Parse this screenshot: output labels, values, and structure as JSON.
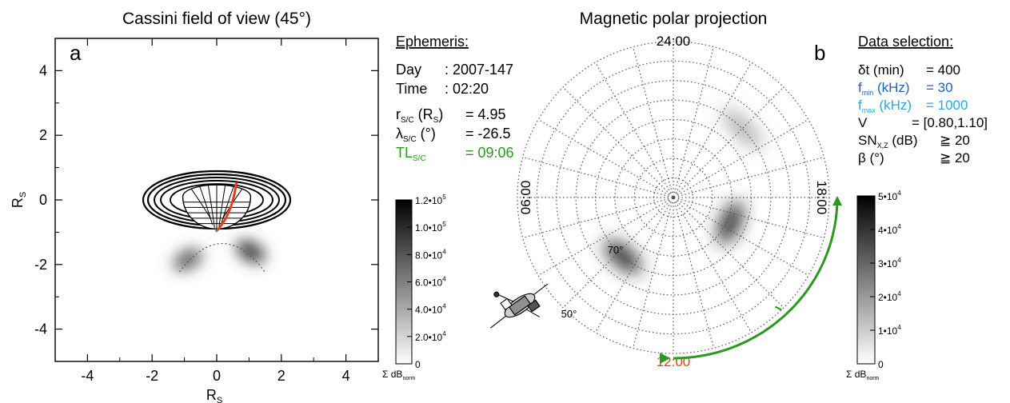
{
  "chart_data": [
    {
      "type": "heatmap",
      "panel": "a",
      "title": "Cassini field of view (45°)",
      "xlabel": "R",
      "xlabel_sub": "S",
      "ylabel": "R",
      "ylabel_sub": "S",
      "xlim": [
        -5,
        5
      ],
      "ylim": [
        -5,
        5
      ],
      "xticks": [
        "-4",
        "-2",
        "0",
        "2",
        "4"
      ],
      "yticks": [
        "4",
        "2",
        "0",
        "-2",
        "-4"
      ],
      "xtick_values": [
        -4,
        -2,
        0,
        2,
        4
      ],
      "ytick_values": [
        4,
        2,
        0,
        -2,
        -4
      ],
      "blobs": [
        {
          "x": -0.9,
          "y": -1.85,
          "intensity": 0.6
        },
        {
          "x": 1.05,
          "y": -1.6,
          "intensity": 0.75
        }
      ],
      "colorbar": {
        "min": 0,
        "max": 120000,
        "label": "Σ dB",
        "label_sub": "norm",
        "ticks": [
          {
            "value": 120000,
            "label": "1.2•10",
            "exp": "5"
          },
          {
            "value": 100000,
            "label": "1.0•10",
            "exp": "5"
          },
          {
            "value": 80000,
            "label": "8.0•10",
            "exp": "4"
          },
          {
            "value": 60000,
            "label": "6.0•10",
            "exp": "4"
          },
          {
            "value": 40000,
            "label": "4.0•10",
            "exp": "4"
          },
          {
            "value": 20000,
            "label": "2.0•10",
            "exp": "4"
          },
          {
            "value": 0,
            "label": "0",
            "exp": ""
          }
        ]
      }
    },
    {
      "type": "heatmap",
      "panel": "b",
      "title": "Magnetic polar projection",
      "projection": "polar",
      "local_time_labels": {
        "top": "24:00",
        "left": "06:00",
        "right": "18:00",
        "bottom": "12:00"
      },
      "latitude_labels": [
        {
          "lat": 70,
          "label": "70°",
          "lt_hours": 15.2
        },
        {
          "lat": 50,
          "label": "50°",
          "lt_hours": 14.8
        }
      ],
      "blobs": [
        {
          "lt_hours": 7.6,
          "colat": 16,
          "intensity": 0.85
        },
        {
          "lt_hours": 14.7,
          "colat": 20,
          "intensity": 0.85
        },
        {
          "lt_hours": 3.0,
          "colat": 25,
          "intensity": 0.35
        }
      ],
      "spacecraft_track": {
        "from_lt": "06:00",
        "to_lt": "12:00"
      },
      "colorbar": {
        "min": 0,
        "max": 50000,
        "label": "Σ dB",
        "label_sub": "norm",
        "ticks": [
          {
            "value": 50000,
            "label": "5•10",
            "exp": "4"
          },
          {
            "value": 40000,
            "label": "4•10",
            "exp": "4"
          },
          {
            "value": 30000,
            "label": "3•10",
            "exp": "4"
          },
          {
            "value": 20000,
            "label": "2•10",
            "exp": "4"
          },
          {
            "value": 10000,
            "label": "1•10",
            "exp": "4"
          },
          {
            "value": 0,
            "label": "0",
            "exp": ""
          }
        ]
      }
    }
  ],
  "ephemeris": {
    "heading": "Ephemeris:",
    "rows": [
      {
        "label": "Day",
        "sub": "",
        "value": ": 2007-147",
        "color": "#000000"
      },
      {
        "label": "Time",
        "sub": "",
        "value": ": 02:20",
        "color": "#000000"
      },
      {
        "label": "r",
        "sub": "S/C",
        "label_tail": "(R",
        "tail_sub": "S",
        "tail_end": ")",
        "value": "= 4.95",
        "color": "#000000"
      },
      {
        "label": "λ",
        "sub": "S/C",
        "label_tail": "(°)",
        "value": "= -26.5",
        "color": "#000000"
      },
      {
        "label": "TL",
        "sub": "S/C",
        "label_tail": "",
        "value": "= 09:06",
        "color": "#2a9a1e"
      }
    ]
  },
  "data_selection": {
    "heading": "Data selection:",
    "rows": [
      {
        "label": "δt (min)",
        "sub": "",
        "tail": "",
        "value": "= 400",
        "color": "#000000"
      },
      {
        "label": "f",
        "sub": "min",
        "tail": "(kHz)",
        "value": "= 30",
        "color": "#1f5fbf"
      },
      {
        "label": "f",
        "sub": "max",
        "tail": "(kHz)",
        "value": "= 1000",
        "color": "#2aa8e0"
      },
      {
        "label": "V",
        "sub": "",
        "tail": "",
        "value": "= [0.80,1.10]",
        "color": "#000000"
      },
      {
        "label": "SN",
        "sub": "X,Z",
        "tail": "(dB)",
        "value": "≧ 20",
        "color": "#000000"
      },
      {
        "label": "β (°)",
        "sub": "",
        "tail": "",
        "value": "≧ 20",
        "color": "#000000"
      }
    ]
  },
  "colors": {
    "saturn_highlight": "#e8401c",
    "track": "#2a9a1e",
    "tl_text": "#2a9a1e",
    "noon_label": "#e8401c"
  }
}
